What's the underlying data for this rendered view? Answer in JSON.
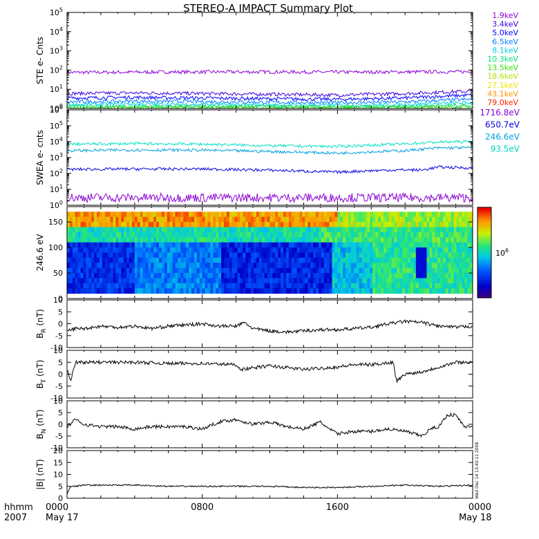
{
  "title": "STEREO-A IMPACT Summary Plot",
  "footer": {
    "left_top": "hhmm",
    "left_bottom": "2007",
    "date_left": "May 17",
    "date_right": "May 18",
    "side_stamp": "Wed Dec 14 13:43:11 2008"
  },
  "colors": {
    "frame": "#000000",
    "ste_channels": [
      "#8a00d4",
      "#3a00e0",
      "#0000ff",
      "#007fff",
      "#00d0e0",
      "#00e07a",
      "#30e000",
      "#b0e000",
      "#f0e000",
      "#ff9000",
      "#ff2000"
    ],
    "swea_channels": [
      "#8a00d4",
      "#0000dd",
      "#00a0e0",
      "#00e0c0"
    ]
  },
  "chart_data": [
    {
      "id": "ste",
      "type": "line",
      "ylabel": "STE e- Cnts",
      "y_scale": "log",
      "ylim": [
        1,
        100000
      ],
      "y_tick_labels": [
        "10^0",
        "10^1",
        "10^2",
        "10^3",
        "10^4",
        "10^5"
      ],
      "xlim": [
        0,
        24
      ],
      "x_tick_labels": [
        "0000",
        "0800",
        "1600",
        "0000"
      ],
      "legend": [
        "1.9keV",
        "3.4keV",
        "5.0keV",
        "6.5keV",
        "8.1keV",
        "10.3keV",
        "13.5keV",
        "18.6keV",
        "27.1keV",
        "43.1keV",
        "79.0keV"
      ],
      "series": [
        {
          "name": "1.9keV",
          "x": [
            0,
            4,
            8,
            12,
            16,
            20,
            24
          ],
          "y": [
            75,
            78,
            80,
            80,
            78,
            80,
            82
          ]
        },
        {
          "name": "3.4keV",
          "x": [
            0,
            4,
            8,
            12,
            16,
            20,
            24
          ],
          "y": [
            6,
            6.5,
            6,
            5.5,
            5,
            6,
            8
          ]
        },
        {
          "name": "5.0keV",
          "x": [
            0,
            4,
            8,
            12,
            16,
            20,
            24
          ],
          "y": [
            3.5,
            3.8,
            3.5,
            3.2,
            3.0,
            3.5,
            5
          ]
        },
        {
          "name": "6.5keV",
          "x": [
            0,
            4,
            8,
            12,
            16,
            20,
            24
          ],
          "y": [
            2.2,
            2.4,
            2.3,
            2.1,
            2.0,
            2.2,
            3
          ]
        },
        {
          "name": "8.1keV",
          "x": [
            0,
            4,
            8,
            12,
            16,
            20,
            24
          ],
          "y": [
            1.6,
            1.7,
            1.6,
            1.5,
            1.5,
            1.6,
            2
          ]
        },
        {
          "name": "10.3keV",
          "x": [
            0,
            4,
            8,
            12,
            16,
            20,
            24
          ],
          "y": [
            1.3,
            1.3,
            1.3,
            1.3,
            1.2,
            1.3,
            1.5
          ]
        },
        {
          "name": "13.5keV",
          "x": [
            0,
            4,
            8,
            12,
            16,
            20,
            24
          ],
          "y": [
            1.15,
            1.15,
            1.15,
            1.15,
            1.1,
            1.15,
            1.2
          ]
        }
      ]
    },
    {
      "id": "swea",
      "type": "line",
      "ylabel": "SWEA e- cnts",
      "y_scale": "log",
      "ylim": [
        1,
        1000000
      ],
      "y_tick_labels": [
        "10^0",
        "10^1",
        "10^2",
        "10^3",
        "10^4",
        "10^5",
        "10^6"
      ],
      "xlim": [
        0,
        24
      ],
      "legend": [
        "1716.8eV",
        "650.7eV",
        "246.6eV",
        "93.5eV"
      ],
      "series": [
        {
          "name": "1716.8eV",
          "x": [
            0,
            4,
            8,
            12,
            16,
            20,
            24
          ],
          "y": [
            3,
            3,
            3,
            3,
            3,
            3,
            3
          ]
        },
        {
          "name": "650.7eV",
          "x": [
            0,
            4,
            8,
            12,
            16,
            18,
            20,
            21,
            22,
            24
          ],
          "y": [
            180,
            190,
            190,
            160,
            120,
            150,
            170,
            160,
            250,
            220
          ]
        },
        {
          "name": "246.6eV",
          "x": [
            0,
            4,
            8,
            12,
            16,
            18,
            20,
            22,
            24
          ],
          "y": [
            2700,
            3000,
            2900,
            2400,
            1900,
            2300,
            2700,
            4000,
            4200
          ]
        },
        {
          "name": "93.5eV",
          "x": [
            0,
            4,
            8,
            12,
            16,
            18,
            20,
            22,
            24
          ],
          "y": [
            7000,
            7500,
            7000,
            5500,
            5000,
            6000,
            7200,
            9500,
            10000
          ]
        }
      ]
    },
    {
      "id": "pad",
      "type": "heatmap",
      "ylabel": "246.6 eV",
      "ylim": [
        0,
        180
      ],
      "y_tick_labels": [
        "0",
        "50",
        "100",
        "150"
      ],
      "xlim": [
        0,
        24
      ],
      "colorbar_label": "10^6"
    },
    {
      "id": "br",
      "type": "line",
      "ylabel": "B_R (nT)",
      "ylim": [
        -10,
        10
      ],
      "y_tick_labels": [
        "-10",
        "-5",
        "0",
        "5",
        "10"
      ],
      "x": [
        0,
        0.5,
        1,
        2,
        3,
        4,
        5,
        6,
        7,
        8,
        9,
        10,
        10.5,
        11,
        12,
        13,
        14,
        15,
        16,
        17,
        18,
        19,
        20,
        21,
        22,
        23,
        24
      ],
      "y": [
        -3,
        -2,
        -2,
        -1,
        -1.5,
        -1,
        -2,
        -1,
        -0.5,
        0,
        -1,
        -1,
        0.5,
        -2,
        -3,
        -3.5,
        -3,
        -2.5,
        -2.5,
        -2,
        -1.5,
        0,
        1,
        0.5,
        -1,
        -1.5,
        -1
      ]
    },
    {
      "id": "bt",
      "type": "line",
      "ylabel": "B_T (nT)",
      "ylim": [
        -10,
        10
      ],
      "y_tick_labels": [
        "-10",
        "-5",
        "0",
        "5",
        "10"
      ],
      "x": [
        0,
        0.2,
        0.5,
        1,
        2,
        4,
        6,
        8,
        10,
        10.3,
        12,
        14,
        16,
        17,
        18,
        19.3,
        19.5,
        20,
        21,
        22,
        22.5,
        23,
        24
      ],
      "y": [
        2,
        -3,
        5,
        5,
        5,
        5,
        4.5,
        4.5,
        4,
        2,
        3.5,
        2,
        3,
        4,
        4,
        5,
        -3,
        0,
        1,
        3,
        4,
        5,
        5
      ]
    },
    {
      "id": "bn",
      "type": "line",
      "ylabel": "B_N (nT)",
      "ylim": [
        -10,
        10
      ],
      "y_tick_labels": [
        "-10",
        "-5",
        "0",
        "5",
        "10"
      ],
      "x": [
        0,
        0.5,
        1,
        2,
        3,
        4,
        5,
        6,
        7,
        8,
        9,
        10,
        11,
        12,
        13,
        14,
        15,
        15.5,
        16,
        17,
        18,
        19,
        20,
        21,
        21.5,
        22,
        22.5,
        23,
        23.5,
        24
      ],
      "y": [
        -1,
        2,
        0,
        -1,
        -1,
        -2,
        -1,
        -1,
        -1,
        -2,
        1,
        2,
        0,
        1,
        -1,
        -2,
        1,
        -2,
        -4,
        -3,
        -3,
        -2,
        -3,
        -5,
        -2,
        -1,
        4,
        4,
        -1,
        -1
      ]
    },
    {
      "id": "bmag",
      "type": "line",
      "ylabel": "|B| (nT)",
      "ylim": [
        0,
        20
      ],
      "y_tick_labels": [
        "0",
        "5",
        "10",
        "15",
        "20"
      ],
      "x": [
        0,
        0.2,
        0.5,
        1,
        2,
        4,
        6,
        8,
        10,
        12,
        14,
        16,
        18,
        20,
        22,
        24
      ],
      "y": [
        2,
        5,
        5,
        5.5,
        5.5,
        5.5,
        5,
        5,
        5,
        5,
        4.5,
        4.5,
        5,
        5.5,
        5,
        5.5
      ]
    }
  ]
}
